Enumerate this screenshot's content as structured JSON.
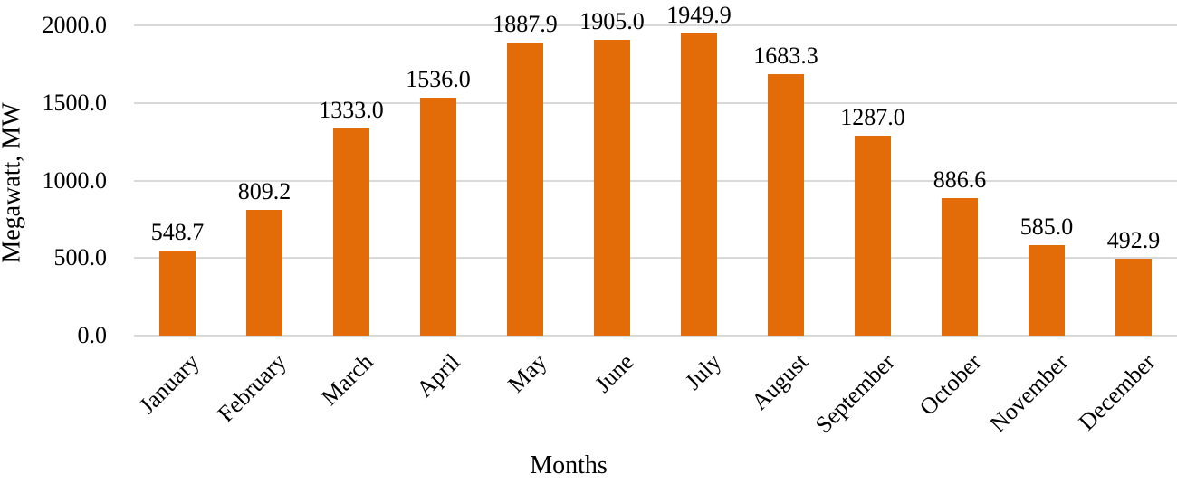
{
  "chart_data": {
    "type": "bar",
    "title": "",
    "xlabel": "Months",
    "ylabel": "Megawatt, MW",
    "categories": [
      "January",
      "February",
      "March",
      "April",
      "May",
      "June",
      "July",
      "August",
      "September",
      "October",
      "November",
      "December"
    ],
    "values": [
      548.7,
      809.2,
      1333.0,
      1536.0,
      1887.9,
      1905.0,
      1949.9,
      1683.3,
      1287.0,
      886.6,
      585.0,
      492.9
    ],
    "value_labels": [
      "548.7",
      "809.2",
      "1333.0",
      "1536.0",
      "1887.9",
      "1905.0",
      "1949.9",
      "1683.3",
      "1287.0",
      "886.6",
      "585.0",
      "492.9"
    ],
    "ylim": [
      0,
      2000
    ],
    "ytick_labels": [
      "0.0",
      "500.0",
      "1000.0",
      "1500.0",
      "2000.0"
    ],
    "ytick_values": [
      0,
      500,
      1000,
      1500,
      2000
    ],
    "grid": true,
    "legend": false,
    "bar_color": "#E36C09",
    "gridline_color": "#D9D9D9",
    "text_color": "#000000"
  }
}
